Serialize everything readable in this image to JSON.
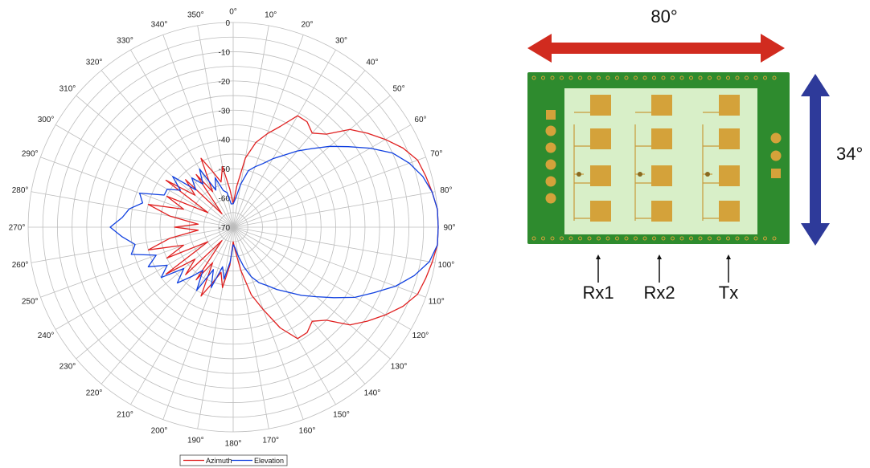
{
  "chart_data": {
    "type": "polar-line",
    "theta_ticks": [
      "0°",
      "10°",
      "20°",
      "30°",
      "40°",
      "50°",
      "60°",
      "70°",
      "80°",
      "90°",
      "100°",
      "110°",
      "120°",
      "130°",
      "140°",
      "150°",
      "160°",
      "170°",
      "180°",
      "190°",
      "200°",
      "210°",
      "220°",
      "230°",
      "240°",
      "250°",
      "260°",
      "270°",
      "280°",
      "290°",
      "300°",
      "310°",
      "320°",
      "330°",
      "340°",
      "350°"
    ],
    "r_ticks": [
      "0",
      "-10",
      "-20",
      "-30",
      "-40",
      "-50",
      "-60",
      "-70"
    ],
    "r_range": [
      -70,
      0
    ],
    "grid": true,
    "legend_position": "bottom",
    "series": [
      {
        "name": "Azimuth",
        "color": "#e02020",
        "theta_deg": [
          0,
          5,
          10,
          15,
          20,
          25,
          30,
          35,
          40,
          45,
          50,
          55,
          60,
          65,
          70,
          75,
          80,
          85,
          90,
          95,
          100,
          105,
          110,
          115,
          120,
          125,
          130,
          135,
          140,
          145,
          150,
          155,
          160,
          165,
          170,
          175,
          180,
          185,
          190,
          195,
          200,
          205,
          210,
          215,
          220,
          225,
          230,
          235,
          240,
          245,
          250,
          255,
          260,
          265,
          270,
          275,
          280,
          285,
          290,
          295,
          300,
          305,
          310,
          315,
          320,
          325,
          330,
          335,
          340,
          345,
          350,
          355
        ],
        "r_db": [
          -62,
          -56,
          -46,
          -40,
          -36,
          -32,
          -26,
          -26,
          -28,
          -25,
          -18,
          -14,
          -10,
          -6,
          -3,
          -2,
          -1,
          0,
          0,
          0,
          -1,
          -2,
          -3,
          -6,
          -10,
          -14,
          -18,
          -25,
          -28,
          -26,
          -26,
          -32,
          -40,
          -46,
          -55,
          -62,
          -65,
          -57,
          -49,
          -54,
          -50,
          -44,
          -56,
          -48,
          -64,
          -47,
          -53,
          -42,
          -60,
          -45,
          -52,
          -40,
          -48,
          -58,
          -50,
          -58,
          -48,
          -40,
          -52,
          -45,
          -60,
          -42,
          -53,
          -47,
          -64,
          -48,
          -56,
          -44,
          -50,
          -54,
          -49,
          -57
        ]
      },
      {
        "name": "Elevation",
        "color": "#1040e0",
        "theta_deg": [
          0,
          5,
          10,
          15,
          20,
          25,
          30,
          35,
          40,
          45,
          50,
          55,
          60,
          65,
          70,
          75,
          80,
          85,
          90,
          95,
          100,
          105,
          110,
          115,
          120,
          125,
          130,
          135,
          140,
          145,
          150,
          155,
          160,
          165,
          170,
          175,
          180,
          185,
          190,
          195,
          200,
          205,
          210,
          215,
          220,
          225,
          230,
          235,
          240,
          245,
          250,
          255,
          260,
          265,
          270,
          275,
          280,
          285,
          290,
          295,
          300,
          305,
          310,
          315,
          320,
          325,
          330,
          335,
          340,
          345,
          350,
          355
        ],
        "r_db": [
          -62,
          -60,
          -55,
          -50,
          -48,
          -46,
          -43,
          -40,
          -36,
          -32,
          -27,
          -22,
          -16,
          -10,
          -6,
          -3,
          -1,
          0,
          0,
          0,
          -2,
          -6,
          -11,
          -17,
          -22,
          -28,
          -33,
          -37,
          -41,
          -44,
          -47,
          -49,
          -52,
          -56,
          -60,
          -63,
          -64,
          -58,
          -52,
          -56,
          -48,
          -54,
          -45,
          -52,
          -48,
          -43,
          -48,
          -40,
          -44,
          -38,
          -42,
          -34,
          -36,
          -32,
          -28,
          -32,
          -34,
          -38,
          -36,
          -44,
          -44,
          -48,
          -43,
          -52,
          -48,
          -52,
          -47,
          -56,
          -52,
          -57,
          -58,
          -62
        ]
      }
    ]
  },
  "diagram": {
    "horizontal_angle": "80°",
    "vertical_angle": "34°",
    "antenna_labels": [
      "Rx1",
      "Rx2",
      "Tx"
    ],
    "arrow_colors": {
      "horizontal": "#d12b1f",
      "vertical": "#2e3a9a"
    },
    "board_colors": {
      "pcb": "#2e8b2e",
      "substrate": "#d8efc8",
      "pads": "#d4a23a"
    }
  }
}
